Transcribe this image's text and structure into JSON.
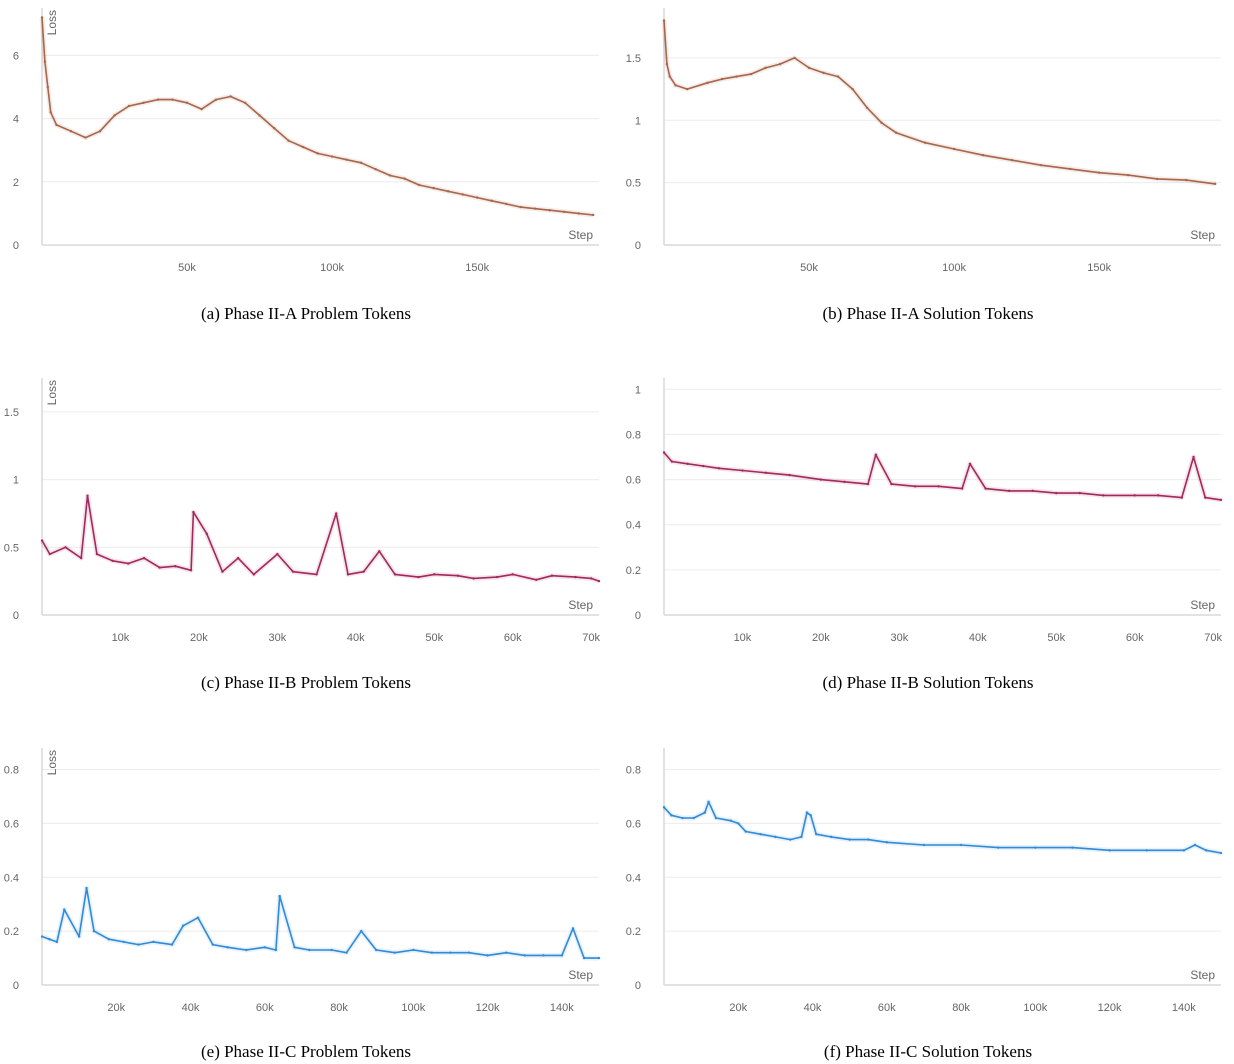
{
  "chart_data": [
    {
      "type": "line",
      "caption": "(a) Phase II-A Problem Tokens",
      "xlabel": "Step",
      "ylabel": "Loss",
      "xlim": [
        0,
        192000
      ],
      "ylim": [
        0,
        7.5
      ],
      "xticks": [
        50000,
        100000,
        150000
      ],
      "xtick_labels": [
        "50k",
        "100k",
        "150k"
      ],
      "yticks": [
        0,
        2,
        4,
        6
      ],
      "ytick_labels": [
        "0",
        "2",
        "4",
        "6"
      ],
      "grid": true,
      "color": "#a8654a",
      "series": [
        {
          "x": [
            0,
            1000,
            2000,
            3000,
            5000,
            10000,
            15000,
            20000,
            25000,
            30000,
            35000,
            40000,
            45000,
            50000,
            55000,
            60000,
            65000,
            70000,
            75000,
            80000,
            85000,
            90000,
            95000,
            100000,
            105000,
            110000,
            115000,
            120000,
            125000,
            130000,
            135000,
            140000,
            145000,
            150000,
            155000,
            160000,
            165000,
            170000,
            175000,
            180000,
            185000,
            190000
          ],
          "y": [
            7.2,
            5.8,
            5.0,
            4.2,
            3.8,
            3.6,
            3.4,
            3.6,
            4.1,
            4.4,
            4.5,
            4.6,
            4.6,
            4.5,
            4.3,
            4.6,
            4.7,
            4.5,
            4.1,
            3.7,
            3.3,
            3.1,
            2.9,
            2.8,
            2.7,
            2.6,
            2.4,
            2.2,
            2.1,
            1.9,
            1.8,
            1.7,
            1.6,
            1.5,
            1.4,
            1.3,
            1.2,
            1.15,
            1.1,
            1.05,
            1.0,
            0.95
          ]
        }
      ]
    },
    {
      "type": "line",
      "caption": "(b) Phase II-A Solution Tokens",
      "xlabel": "Step",
      "ylabel": "",
      "xlim": [
        0,
        192000
      ],
      "ylim": [
        0,
        1.9
      ],
      "xticks": [
        50000,
        100000,
        150000
      ],
      "xtick_labels": [
        "50k",
        "100k",
        "150k"
      ],
      "yticks": [
        0,
        0.5,
        1,
        1.5
      ],
      "ytick_labels": [
        "0",
        "0.5",
        "1",
        "1.5"
      ],
      "grid": true,
      "color": "#a8654a",
      "series": [
        {
          "x": [
            0,
            1000,
            2000,
            4000,
            8000,
            15000,
            20000,
            25000,
            30000,
            35000,
            40000,
            45000,
            50000,
            55000,
            60000,
            65000,
            70000,
            75000,
            80000,
            90000,
            100000,
            110000,
            120000,
            130000,
            140000,
            150000,
            160000,
            170000,
            180000,
            190000
          ],
          "y": [
            1.8,
            1.45,
            1.35,
            1.28,
            1.25,
            1.3,
            1.33,
            1.35,
            1.37,
            1.42,
            1.45,
            1.5,
            1.42,
            1.38,
            1.35,
            1.25,
            1.1,
            0.98,
            0.9,
            0.82,
            0.77,
            0.72,
            0.68,
            0.64,
            0.61,
            0.58,
            0.56,
            0.53,
            0.52,
            0.49
          ]
        }
      ]
    },
    {
      "type": "line",
      "caption": "(c) Phase II-B Problem Tokens",
      "xlabel": "Step",
      "ylabel": "Loss",
      "xlim": [
        0,
        71000
      ],
      "ylim": [
        0,
        1.75
      ],
      "xticks": [
        10000,
        20000,
        30000,
        40000,
        50000,
        60000,
        70000
      ],
      "xtick_labels": [
        "10k",
        "20k",
        "30k",
        "40k",
        "50k",
        "60k",
        "70k"
      ],
      "yticks": [
        0,
        0.5,
        1,
        1.5
      ],
      "ytick_labels": [
        "0",
        "0.5",
        "1",
        "1.5"
      ],
      "grid": true,
      "color": "#a3285e",
      "series": [
        {
          "x": [
            0,
            1000,
            3000,
            5000,
            5800,
            7000,
            9000,
            11000,
            13000,
            15000,
            17000,
            19000,
            19300,
            21000,
            23000,
            25000,
            27000,
            30000,
            32000,
            35000,
            37500,
            39000,
            41000,
            43000,
            45000,
            48000,
            50000,
            53000,
            55000,
            58000,
            60000,
            63000,
            65000,
            68000,
            70000,
            71000
          ],
          "y": [
            0.55,
            0.45,
            0.5,
            0.42,
            0.88,
            0.45,
            0.4,
            0.38,
            0.42,
            0.35,
            0.36,
            0.33,
            0.76,
            0.6,
            0.32,
            0.42,
            0.3,
            0.45,
            0.32,
            0.3,
            0.75,
            0.3,
            0.32,
            0.47,
            0.3,
            0.28,
            0.3,
            0.29,
            0.27,
            0.28,
            0.3,
            0.26,
            0.29,
            0.28,
            0.27,
            0.25
          ]
        }
      ]
    },
    {
      "type": "line",
      "caption": "(d) Phase II-B Solution Tokens",
      "xlabel": "Step",
      "ylabel": "",
      "xlim": [
        0,
        71000
      ],
      "ylim": [
        0,
        1.05
      ],
      "xticks": [
        10000,
        20000,
        30000,
        40000,
        50000,
        60000,
        70000
      ],
      "xtick_labels": [
        "10k",
        "20k",
        "30k",
        "40k",
        "50k",
        "60k",
        "70k"
      ],
      "yticks": [
        0,
        0.2,
        0.4,
        0.6,
        0.8,
        1
      ],
      "ytick_labels": [
        "0",
        "0.2",
        "0.4",
        "0.6",
        "0.8",
        "1"
      ],
      "grid": true,
      "color": "#a3285e",
      "series": [
        {
          "x": [
            0,
            1000,
            3000,
            5000,
            7000,
            10000,
            13000,
            16000,
            20000,
            23000,
            26000,
            27000,
            29000,
            32000,
            35000,
            38000,
            39000,
            41000,
            44000,
            47000,
            50000,
            53000,
            56000,
            60000,
            63000,
            66000,
            67500,
            69000,
            71000
          ],
          "y": [
            0.72,
            0.68,
            0.67,
            0.66,
            0.65,
            0.64,
            0.63,
            0.62,
            0.6,
            0.59,
            0.58,
            0.71,
            0.58,
            0.57,
            0.57,
            0.56,
            0.67,
            0.56,
            0.55,
            0.55,
            0.54,
            0.54,
            0.53,
            0.53,
            0.53,
            0.52,
            0.7,
            0.52,
            0.51
          ]
        }
      ]
    },
    {
      "type": "line",
      "caption": "(e) Phase II-C Problem Tokens",
      "xlabel": "Step",
      "ylabel": "Loss",
      "xlim": [
        0,
        150000
      ],
      "ylim": [
        0,
        0.88
      ],
      "xticks": [
        20000,
        40000,
        60000,
        80000,
        100000,
        120000,
        140000
      ],
      "xtick_labels": [
        "20k",
        "40k",
        "60k",
        "80k",
        "100k",
        "120k",
        "140k"
      ],
      "yticks": [
        0,
        0.2,
        0.4,
        0.6,
        0.8
      ],
      "ytick_labels": [
        "0",
        "0.2",
        "0.4",
        "0.6",
        "0.8"
      ],
      "grid": true,
      "color": "#2f8ad8",
      "series": [
        {
          "x": [
            0,
            2000,
            4000,
            6000,
            10000,
            12000,
            14000,
            18000,
            22000,
            26000,
            30000,
            35000,
            38000,
            42000,
            46000,
            50000,
            55000,
            60000,
            63000,
            64000,
            68000,
            72000,
            78000,
            82000,
            86000,
            90000,
            95000,
            100000,
            105000,
            110000,
            115000,
            120000,
            125000,
            130000,
            135000,
            140000,
            143000,
            146000,
            150000
          ],
          "y": [
            0.18,
            0.17,
            0.16,
            0.28,
            0.18,
            0.36,
            0.2,
            0.17,
            0.16,
            0.15,
            0.16,
            0.15,
            0.22,
            0.25,
            0.15,
            0.14,
            0.13,
            0.14,
            0.13,
            0.33,
            0.14,
            0.13,
            0.13,
            0.12,
            0.2,
            0.13,
            0.12,
            0.13,
            0.12,
            0.12,
            0.12,
            0.11,
            0.12,
            0.11,
            0.11,
            0.11,
            0.21,
            0.1,
            0.1
          ]
        }
      ]
    },
    {
      "type": "line",
      "caption": "(f) Phase II-C Solution Tokens",
      "xlabel": "Step",
      "ylabel": "",
      "xlim": [
        0,
        150000
      ],
      "ylim": [
        0,
        0.88
      ],
      "xticks": [
        20000,
        40000,
        60000,
        80000,
        100000,
        120000,
        140000
      ],
      "xtick_labels": [
        "20k",
        "40k",
        "60k",
        "80k",
        "100k",
        "120k",
        "140k"
      ],
      "yticks": [
        0,
        0.2,
        0.4,
        0.6,
        0.8
      ],
      "ytick_labels": [
        "0",
        "0.2",
        "0.4",
        "0.6",
        "0.8"
      ],
      "grid": true,
      "color": "#2f8ad8",
      "series": [
        {
          "x": [
            0,
            2000,
            5000,
            8000,
            11000,
            12000,
            14000,
            18000,
            20000,
            22000,
            26000,
            30000,
            34000,
            37000,
            38500,
            39500,
            41000,
            45000,
            50000,
            55000,
            60000,
            70000,
            80000,
            90000,
            100000,
            110000,
            120000,
            130000,
            140000,
            143000,
            146000,
            150000
          ],
          "y": [
            0.66,
            0.63,
            0.62,
            0.62,
            0.64,
            0.68,
            0.62,
            0.61,
            0.6,
            0.57,
            0.56,
            0.55,
            0.54,
            0.55,
            0.64,
            0.63,
            0.56,
            0.55,
            0.54,
            0.54,
            0.53,
            0.52,
            0.52,
            0.51,
            0.51,
            0.51,
            0.5,
            0.5,
            0.5,
            0.52,
            0.5,
            0.49
          ]
        }
      ]
    }
  ]
}
